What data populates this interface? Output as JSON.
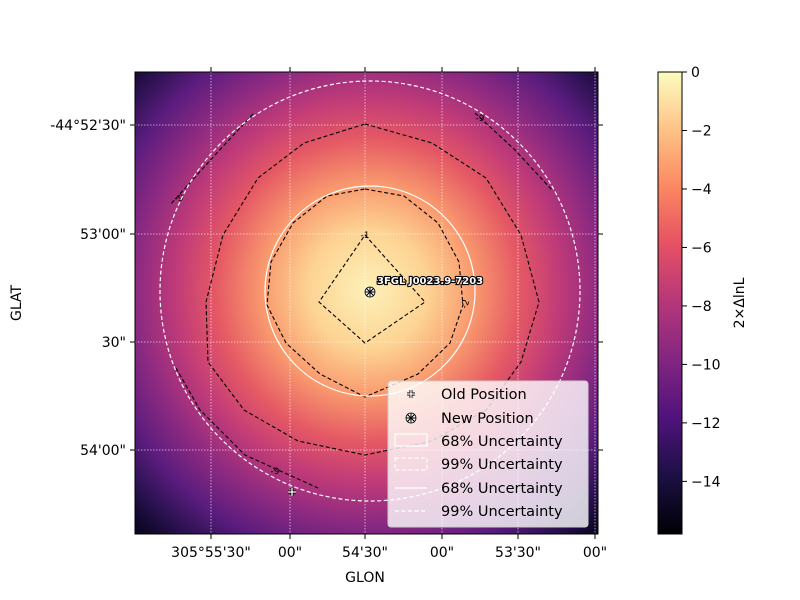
{
  "chart_data": {
    "type": "heatmap",
    "title": "",
    "xlabel": "GLON",
    "ylabel": "GLAT",
    "x_tick_labels": [
      "305°55'30\"",
      "00\"",
      "54'30\"",
      "00\"",
      "53'30\"",
      "00\""
    ],
    "y_tick_labels": [
      "-44°52'30\"",
      "53'00\"",
      "30\"",
      "54'00\""
    ],
    "grid": true,
    "colormap": "magma",
    "colorbar": {
      "label": "2×ΔlnL",
      "range": [
        -15.8,
        0
      ],
      "tick_labels": [
        "0",
        "−2",
        "−4",
        "−6",
        "−8",
        "−10",
        "−12",
        "−14"
      ]
    },
    "contour_levels": [
      "-1",
      "-2",
      "-9"
    ],
    "source": {
      "name": "3FGL J0023.9-7203"
    },
    "legend": {
      "placement": "lower-right",
      "entries": [
        {
          "label": "Old Position"
        },
        {
          "label": "New Position"
        },
        {
          "label": "68% Uncertainty"
        },
        {
          "label": "99% Uncertainty"
        },
        {
          "label": "68% Uncertainty"
        },
        {
          "label": "99% Uncertainty"
        }
      ]
    }
  }
}
